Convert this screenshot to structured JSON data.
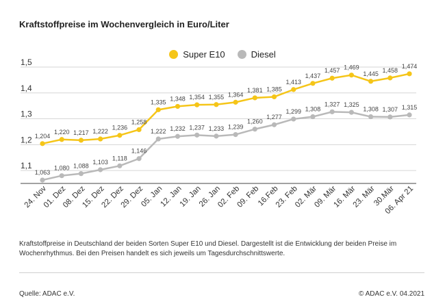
{
  "title": "Kraftstoffpreise im Wochenvergleich in Euro/Liter",
  "description": "Kraftstoffpreise in Deutschland der beiden Sorten Super E10 und Diesel. Dargestellt ist die Entwicklung der beiden Preise im Wochenrhythmus. Bei den Preisen handelt es sich jeweils um Tagesdurchschnittswerte.",
  "source": "Quelle: ADAC e.V.",
  "copyright": "© ADAC e.V. 04.2021",
  "colors": {
    "super": "#f5c518",
    "diesel": "#b9b9b9",
    "grid": "#d6d6d6",
    "axis": "#444444"
  },
  "chart_data": {
    "type": "line",
    "title": "Kraftstoffpreise im Wochenvergleich in Euro/Liter",
    "xlabel": "",
    "ylabel": "",
    "ylim": [
      1.05,
      1.5
    ],
    "yticks": [
      "1,1",
      "1,2",
      "1,3",
      "1,4",
      "1,5"
    ],
    "ytick_values": [
      1.1,
      1.2,
      1.3,
      1.4,
      1.5
    ],
    "legend_position": "top-center",
    "grid": true,
    "categories": [
      "24. Nov",
      "01. Dez",
      "08. Dez",
      "15. Dez",
      "22. Dez",
      "29. Dez",
      "05. Jan",
      "12. Jan",
      "19. Jan",
      "26. Jan",
      "02. Feb",
      "09. Feb",
      "16.Feb",
      "23. Feb",
      "02. Mär",
      "09. Mär",
      "16. Mär",
      "23. Mär",
      "30.Mär",
      "06. Apr 21"
    ],
    "series": [
      {
        "name": "Super E10",
        "values": [
          1.204,
          1.22,
          1.217,
          1.222,
          1.236,
          1.258,
          1.335,
          1.348,
          1.354,
          1.355,
          1.364,
          1.381,
          1.385,
          1.413,
          1.437,
          1.457,
          1.469,
          1.445,
          1.458,
          1.474
        ],
        "labels": [
          "1,204",
          "1,220",
          "1,217",
          "1,222",
          "1,236",
          "1,258",
          "1,335",
          "1,348",
          "1,354",
          "1,355",
          "1,364",
          "1,381",
          "1,385",
          "1,413",
          "1,437",
          "1,457",
          "1,469",
          "1,445",
          "1,458",
          "1,474"
        ]
      },
      {
        "name": "Diesel",
        "values": [
          1.063,
          1.08,
          1.088,
          1.103,
          1.118,
          1.146,
          1.222,
          1.232,
          1.237,
          1.233,
          1.239,
          1.26,
          1.277,
          1.299,
          1.308,
          1.327,
          1.325,
          1.308,
          1.307,
          1.315
        ],
        "labels": [
          "1,063",
          "1,080",
          "1,088",
          "1,103",
          "1,118",
          "1,146",
          "1,222",
          "1,232",
          "1,237",
          "1,233",
          "1,239",
          "1,260",
          "1,277",
          "1,299",
          "1,308",
          "1,327",
          "1,325",
          "1,308",
          "1,307",
          "1,315"
        ]
      }
    ]
  }
}
